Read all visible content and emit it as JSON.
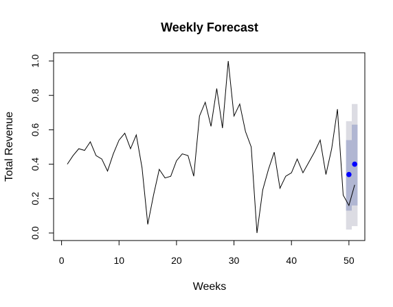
{
  "chart_data": {
    "type": "line",
    "title": "Weekly Forecast",
    "xlabel": "Weeks",
    "ylabel": "Total Revenue",
    "xlim": [
      0,
      52.5
    ],
    "ylim": [
      0,
      1
    ],
    "grid": false,
    "x_ticks": [
      0,
      10,
      20,
      30,
      40,
      50
    ],
    "y_ticks": [
      0.0,
      0.2,
      0.4,
      0.6,
      0.8,
      1.0
    ],
    "x_tick_labels": [
      "0",
      "10",
      "20",
      "30",
      "40",
      "50"
    ],
    "y_tick_labels": [
      "0.0",
      "0.2",
      "0.4",
      "0.6",
      "0.8",
      "1.0"
    ],
    "series": [
      {
        "type": "line",
        "color": "#000000",
        "x": [
          1,
          2,
          3,
          4,
          5,
          6,
          7,
          8,
          9,
          10,
          11,
          12,
          13,
          14,
          15,
          16,
          17,
          18,
          19,
          20,
          21,
          22,
          23,
          24,
          25,
          26,
          27,
          28,
          29,
          30,
          31,
          32,
          33,
          34,
          35,
          36,
          37,
          38,
          39,
          40,
          41,
          42,
          43,
          44,
          45,
          46,
          47,
          48,
          49,
          50,
          51
        ],
        "values": [
          0.4,
          0.45,
          0.49,
          0.48,
          0.53,
          0.45,
          0.43,
          0.36,
          0.46,
          0.54,
          0.58,
          0.49,
          0.57,
          0.38,
          0.05,
          0.22,
          0.37,
          0.32,
          0.33,
          0.42,
          0.46,
          0.45,
          0.33,
          0.68,
          0.76,
          0.62,
          0.84,
          0.61,
          1.0,
          0.68,
          0.75,
          0.59,
          0.5,
          0.0,
          0.25,
          0.37,
          0.47,
          0.26,
          0.33,
          0.35,
          0.43,
          0.35,
          0.41,
          0.47,
          0.54,
          0.34,
          0.49,
          0.72,
          0.22,
          0.16,
          0.28
        ]
      }
    ],
    "forecast": {
      "color": "#0000ff",
      "points": [
        {
          "x": 50,
          "y": 0.34
        },
        {
          "x": 51,
          "y": 0.4
        }
      ],
      "intervals": [
        {
          "x": 50,
          "lo95": 0.02,
          "hi95": 0.65,
          "lo80": 0.13,
          "hi80": 0.54
        },
        {
          "x": 51,
          "lo95": 0.04,
          "hi95": 0.75,
          "lo80": 0.16,
          "hi80": 0.63
        }
      ],
      "band95_color": "#dcdce3",
      "band80_color": "#b0b6d2"
    }
  }
}
